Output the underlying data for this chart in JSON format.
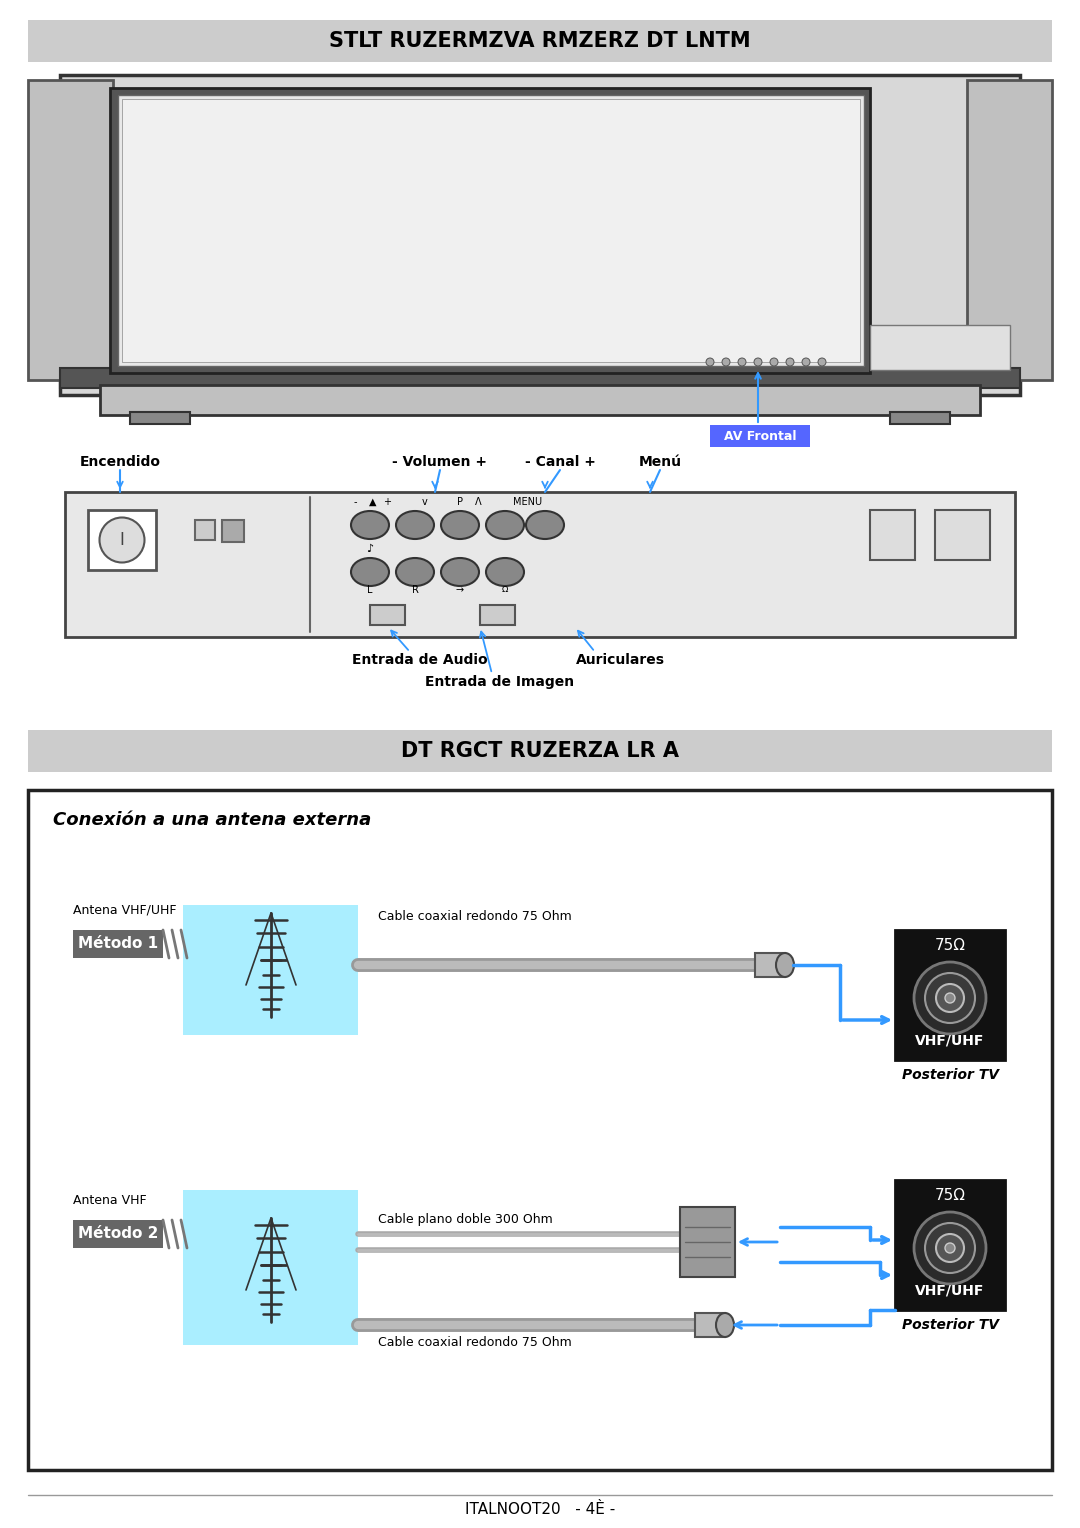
{
  "title1": "STLT RUZERMZVA RMZERZ DT LNTM",
  "title2": "DT RGCT RUZERZA LR A",
  "footer": "ITALNOOT20   - 4È -",
  "bg_color": "#ffffff",
  "header_bg": "#cccccc",
  "label_encendido": "Encendido",
  "label_volumen": "- Volumen +",
  "label_canal": "- Canal +",
  "label_menu": "Menú",
  "label_av_frontal": "AV Frontal",
  "label_entrada_audio": "Entrada de Audio",
  "label_entrada_imagen": "Entrada de Imagen",
  "label_auriculares": "Auriculares",
  "conexion_title": "Conexión a una antena externa",
  "metodo1_label": "Método 1",
  "metodo2_label": "Método 2",
  "antena_vhf_uhf": "Antena VHF/UHF",
  "antena_vhf": "Antena VHF",
  "cable_coaxial1": "Cable coaxial redondo 75 Ohm",
  "cable_plano": "Cable plano doble 300 Ohm",
  "cable_coaxial2": "Cable coaxial redondo 75 Ohm",
  "vhf_uhf": "VHF/UHF",
  "posterior_tv": "Posterior TV",
  "ohm_label": "75Ω",
  "blue_color": "#3399ff",
  "cyan_bg": "#aaeeff",
  "panel_color": "#e8e8e8",
  "dark_panel": "#222222",
  "mid_gray": "#888888"
}
